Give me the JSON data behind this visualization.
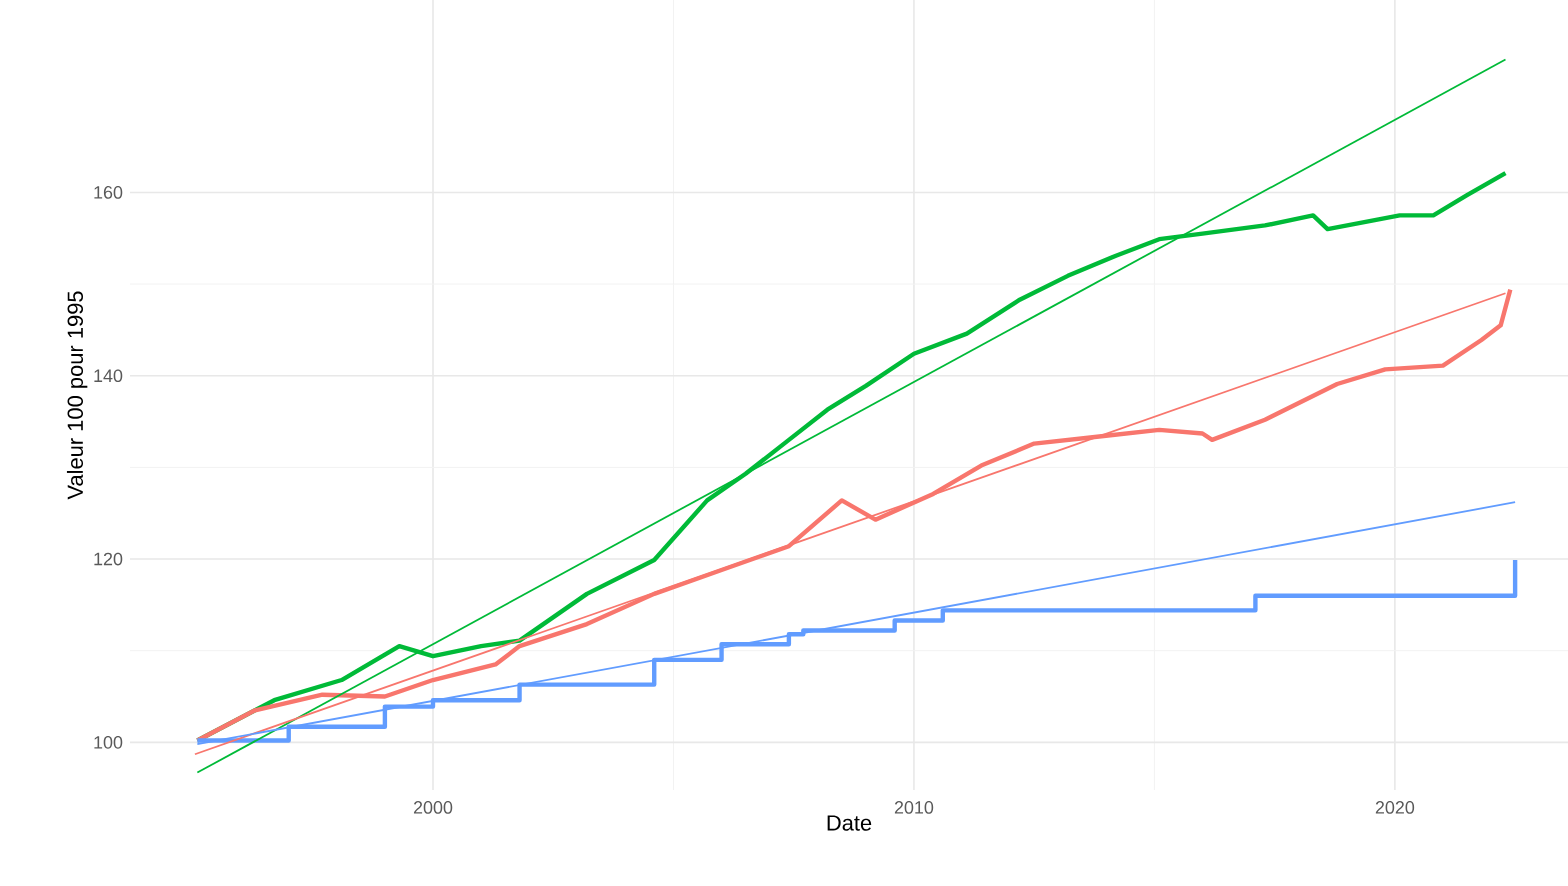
{
  "chart_data": {
    "type": "line",
    "xlabel": "Date",
    "ylabel": "Valeur 100 pour 1995",
    "xlim": [
      1993.7,
      2023.6
    ],
    "ylim": [
      94.8,
      181
    ],
    "xticks": [
      2000,
      2010,
      2020
    ],
    "yticks": [
      100,
      120,
      140,
      160
    ],
    "grid": true,
    "series": [
      {
        "color": "#00BA38",
        "x": [
          1995.1,
          1996.7,
          1998.1,
          1999.3,
          2000.0,
          2001.0,
          2001.8,
          2003.2,
          2004.6,
          2005.7,
          2006.5,
          2007.4,
          2008.2,
          2009.0,
          2010.0,
          2011.1,
          2012.2,
          2013.2,
          2014.2,
          2015.1,
          2016.0,
          2017.3,
          2018.3,
          2018.6,
          2020.1,
          2020.8,
          2021.5,
          2022.3
        ],
        "values": [
          100.2,
          104.6,
          106.8,
          110.5,
          109.4,
          110.5,
          111.1,
          116.2,
          119.9,
          126.4,
          129.3,
          133.0,
          136.3,
          138.9,
          142.4,
          144.6,
          148.3,
          150.9,
          153.1,
          154.9,
          155.5,
          156.4,
          157.5,
          156.0,
          157.5,
          157.5,
          159.7,
          162.1
        ]
      },
      {
        "color": "#F8766D",
        "x": [
          1995.1,
          1996.3,
          1997.7,
          1999.0,
          2000.0,
          2001.3,
          2001.8,
          2003.2,
          2004.6,
          2006.0,
          2007.4,
          2008.5,
          2009.2,
          2010.4,
          2011.4,
          2012.5,
          2013.9,
          2015.1,
          2016.0,
          2016.2,
          2017.3,
          2018.8,
          2019.8,
          2021.0,
          2021.8,
          2022.2,
          2022.4
        ],
        "values": [
          100.2,
          103.5,
          105.2,
          105.0,
          106.8,
          108.5,
          110.5,
          112.9,
          116.2,
          118.8,
          121.4,
          126.4,
          124.3,
          127.1,
          130.2,
          132.6,
          133.4,
          134.1,
          133.7,
          133.0,
          135.2,
          139.1,
          140.7,
          141.1,
          143.9,
          145.5,
          149.4
        ]
      },
      {
        "type": "step",
        "color": "#619CFF",
        "x": [
          1995.1,
          1997.0,
          1999.0,
          2000.0,
          2001.8,
          2004.6,
          2006.0,
          2007.4,
          2007.7,
          2009.6,
          2010.6,
          2016.5,
          2017.1,
          2022.5,
          2022.5
        ],
        "values": [
          100.2,
          101.7,
          103.9,
          104.6,
          106.3,
          109.0,
          110.7,
          111.8,
          112.2,
          113.3,
          114.4,
          114.4,
          116.0,
          116.0,
          119.9
        ]
      },
      {
        "color": "#00BA38",
        "x": [
          1995.1,
          2022.3
        ],
        "values": [
          96.7,
          174.5
        ]
      },
      {
        "color": "#F8766D",
        "x": [
          1995.05,
          2022.3
        ],
        "values": [
          98.7,
          149.0
        ]
      },
      {
        "color": "#619CFF",
        "x": [
          1995.1,
          2022.5
        ],
        "values": [
          99.8,
          126.2
        ]
      }
    ]
  }
}
